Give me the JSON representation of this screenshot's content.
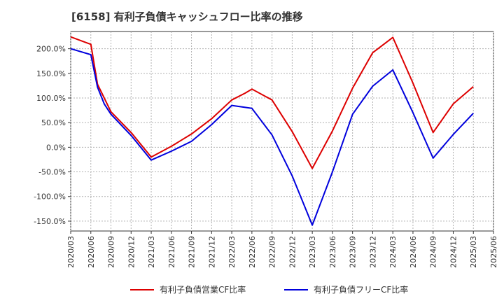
{
  "chart_data": {
    "type": "line",
    "title": "[6158]  有利子負債キャッシュフロー比率の推移",
    "xlabel": "",
    "ylabel": "",
    "ylim": [
      -170,
      235
    ],
    "yticks": [
      -150,
      -100,
      -50,
      0,
      50,
      100,
      150,
      200
    ],
    "ytick_labels": [
      "-150.0%",
      "-100.0%",
      "-50.0%",
      "0.0%",
      "50.0%",
      "100.0%",
      "150.0%",
      "200.0%"
    ],
    "xtick_labels": [
      "2020/03",
      "2020/06",
      "2020/09",
      "2020/12",
      "2021/03",
      "2021/06",
      "2021/09",
      "2021/12",
      "2022/03",
      "2022/06",
      "2022/09",
      "2022/12",
      "2023/03",
      "2023/06",
      "2023/09",
      "2023/12",
      "2024/03",
      "2024/06",
      "2024/09",
      "2024/12",
      "2025/03",
      "2025/06"
    ],
    "grid": true,
    "legend_position": "bottom",
    "series": [
      {
        "name": "有利子負債営業CF比率",
        "color": "#dd0000",
        "x": [
          "2020/03",
          "2020/06",
          "2020/07",
          "2020/09",
          "2020/12",
          "2021/03",
          "2021/06",
          "2021/09",
          "2021/12",
          "2022/03",
          "2022/05",
          "2022/06",
          "2022/09",
          "2022/12",
          "2023/03",
          "2023/06",
          "2023/09",
          "2023/12",
          "2024/03",
          "2024/06",
          "2024/09",
          "2024/12",
          "2025/03"
        ],
        "values": [
          224,
          209,
          128,
          72,
          30,
          -20,
          2,
          27,
          58,
          96,
          110,
          118,
          96,
          32,
          -43,
          33,
          120,
          192,
          223,
          130,
          30,
          88,
          123
        ]
      },
      {
        "name": "有利子負債フリーCF比率",
        "color": "#0000dd",
        "x": [
          "2020/03",
          "2020/06",
          "2020/07",
          "2020/08",
          "2020/09",
          "2020/12",
          "2021/03",
          "2021/06",
          "2021/09",
          "2021/12",
          "2022/03",
          "2022/06",
          "2022/09",
          "2022/12",
          "2023/03",
          "2023/06",
          "2023/09",
          "2023/12",
          "2024/03",
          "2024/06",
          "2024/09",
          "2024/12",
          "2025/03"
        ],
        "values": [
          200,
          188,
          122,
          88,
          67,
          24,
          -26,
          -8,
          12,
          46,
          85,
          79,
          25,
          -58,
          -158,
          -50,
          67,
          124,
          157,
          70,
          -22,
          26,
          69
        ]
      }
    ]
  }
}
